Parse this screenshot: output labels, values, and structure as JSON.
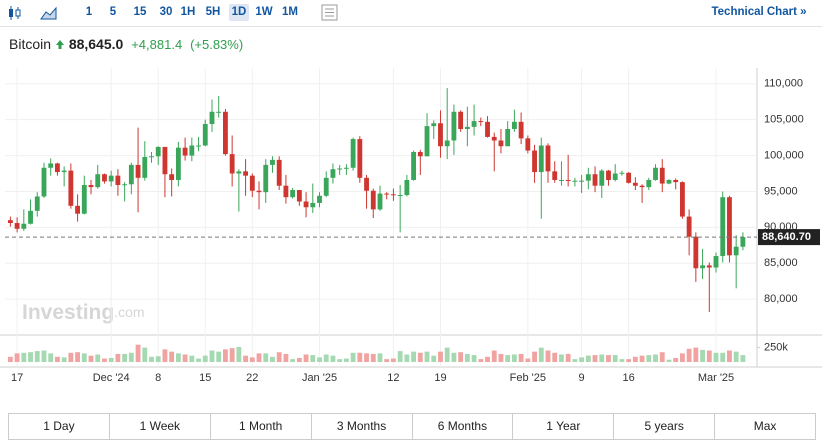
{
  "toolbar": {
    "intervals": [
      "1",
      "5",
      "15",
      "30",
      "1H",
      "5H",
      "1D",
      "1W",
      "1M"
    ],
    "selected": "1D",
    "link": "Technical Chart »"
  },
  "header": {
    "name": "Bitcoin",
    "price": "88,645.0",
    "change": "+4,881.4",
    "change_pct": "(+5.83%)"
  },
  "watermark": {
    "brand": "Investing",
    "suffix": ".com"
  },
  "ranges": [
    "1 Day",
    "1 Week",
    "1 Month",
    "3 Months",
    "6 Months",
    "1 Year",
    "5 years",
    "Max"
  ],
  "chart_data": {
    "type": "candlestick",
    "up_color": "#3aa65a",
    "down_color": "#cf3630",
    "grid": true,
    "xlim": [
      -0.8,
      111.1
    ],
    "xticks": [
      {
        "value": 1,
        "label": "17"
      },
      {
        "value": 15,
        "label": "Dec '24"
      },
      {
        "value": 22,
        "label": "8"
      },
      {
        "value": 29,
        "label": "15"
      },
      {
        "value": 36,
        "label": "22"
      },
      {
        "value": 46,
        "label": "Jan '25"
      },
      {
        "value": 57,
        "label": "12"
      },
      {
        "value": 64,
        "label": "19"
      },
      {
        "value": 77,
        "label": "Feb '25"
      },
      {
        "value": 85,
        "label": "9"
      },
      {
        "value": 92,
        "label": "16"
      },
      {
        "value": 105,
        "label": "Mar '25"
      }
    ],
    "ylim": [
      75000,
      112200
    ],
    "yticks": [
      {
        "value": 80000,
        "label": "80,000"
      },
      {
        "value": 85000,
        "label": "85,000"
      },
      {
        "value": 90000,
        "label": "90,000"
      },
      {
        "value": 95000,
        "label": "95,000"
      },
      {
        "value": 100000,
        "label": "100,000"
      },
      {
        "value": 105000,
        "label": "105,000"
      },
      {
        "value": 110000,
        "label": "110,000"
      }
    ],
    "last_price": {
      "value": 88640.7,
      "label": "88,640.70"
    },
    "ohlc": [
      [
        91000,
        91500,
        90100,
        90600
      ],
      [
        90600,
        91400,
        89300,
        89800
      ],
      [
        89800,
        92500,
        89500,
        90500
      ],
      [
        90500,
        93900,
        90400,
        92300
      ],
      [
        92300,
        94900,
        91500,
        94300
      ],
      [
        94300,
        99000,
        94100,
        98300
      ],
      [
        98300,
        99600,
        97200,
        98900
      ],
      [
        98900,
        99000,
        97200,
        97700
      ],
      [
        97700,
        98500,
        95700,
        97900
      ],
      [
        97900,
        98900,
        92600,
        93000
      ],
      [
        93000,
        94600,
        90800,
        91900
      ],
      [
        91900,
        97200,
        91800,
        95900
      ],
      [
        95900,
        96600,
        94600,
        95600
      ],
      [
        95600,
        98700,
        95400,
        97400
      ],
      [
        97400,
        97500,
        96100,
        96400
      ],
      [
        96400,
        97900,
        95700,
        97200
      ],
      [
        97200,
        98100,
        94400,
        95900
      ],
      [
        95900,
        96300,
        93600,
        96000
      ],
      [
        96000,
        99000,
        94600,
        98700
      ],
      [
        98700,
        103900,
        92100,
        96900
      ],
      [
        96900,
        102000,
        96500,
        99800
      ],
      [
        99800,
        100500,
        99000,
        99900
      ],
      [
        99900,
        101300,
        98700,
        101200
      ],
      [
        101200,
        101200,
        94200,
        97400
      ],
      [
        97400,
        98200,
        94300,
        96600
      ],
      [
        96600,
        101900,
        95700,
        101100
      ],
      [
        101100,
        102500,
        99300,
        100000
      ],
      [
        100000,
        102500,
        99200,
        101400
      ],
      [
        101400,
        102600,
        100600,
        101400
      ],
      [
        101400,
        105000,
        101300,
        104400
      ],
      [
        104400,
        107800,
        103300,
        106100
      ],
      [
        106100,
        108300,
        105300,
        106100
      ],
      [
        106100,
        106500,
        100000,
        100200
      ],
      [
        100200,
        102800,
        95700,
        97500
      ],
      [
        97500,
        98100,
        92200,
        97800
      ],
      [
        97800,
        99500,
        94400,
        97200
      ],
      [
        97200,
        97500,
        94200,
        95100
      ],
      [
        95100,
        96400,
        92500,
        94900
      ],
      [
        94900,
        99500,
        93400,
        98700
      ],
      [
        98700,
        99900,
        97600,
        99400
      ],
      [
        99400,
        99900,
        95200,
        95800
      ],
      [
        95800,
        97300,
        93300,
        94200
      ],
      [
        94200,
        95500,
        94000,
        95200
      ],
      [
        95200,
        95200,
        93000,
        93600
      ],
      [
        93600,
        94900,
        91400,
        92800
      ],
      [
        92800,
        96100,
        92000,
        93400
      ],
      [
        93400,
        94900,
        92800,
        94400
      ],
      [
        94400,
        97800,
        94200,
        96900
      ],
      [
        96900,
        98900,
        96100,
        98100
      ],
      [
        98100,
        98700,
        97300,
        98200
      ],
      [
        98200,
        98800,
        97300,
        98300
      ],
      [
        98300,
        102500,
        97900,
        102300
      ],
      [
        102300,
        102700,
        96200,
        96900
      ],
      [
        96900,
        97300,
        92600,
        95100
      ],
      [
        95100,
        95400,
        91300,
        92500
      ],
      [
        92500,
        95800,
        92300,
        94700
      ],
      [
        94700,
        94900,
        93900,
        94600
      ],
      [
        94600,
        95400,
        93700,
        94500
      ],
      [
        94500,
        95900,
        89300,
        94500
      ],
      [
        94500,
        97300,
        94300,
        96600
      ],
      [
        96600,
        100700,
        96500,
        100500
      ],
      [
        100500,
        100800,
        97300,
        99900
      ],
      [
        99900,
        105900,
        99900,
        104100
      ],
      [
        104100,
        104900,
        102300,
        104500
      ],
      [
        104500,
        106300,
        99700,
        101300
      ],
      [
        101300,
        109400,
        99500,
        102100
      ],
      [
        102100,
        107100,
        100100,
        106100
      ],
      [
        106100,
        106300,
        103300,
        103700
      ],
      [
        103700,
        106800,
        101300,
        104000
      ],
      [
        104000,
        107100,
        102800,
        104800
      ],
      [
        104800,
        105300,
        104100,
        104700
      ],
      [
        104700,
        105500,
        102500,
        102600
      ],
      [
        102600,
        103200,
        97800,
        102100
      ],
      [
        102100,
        103700,
        100300,
        101300
      ],
      [
        101300,
        104800,
        101300,
        103700
      ],
      [
        103700,
        106400,
        103300,
        104700
      ],
      [
        104700,
        106000,
        101600,
        102400
      ],
      [
        102400,
        102800,
        100300,
        100700
      ],
      [
        100700,
        101500,
        96200,
        97700
      ],
      [
        97700,
        102500,
        91200,
        101400
      ],
      [
        101400,
        101700,
        96200,
        97800
      ],
      [
        97800,
        99200,
        96200,
        96600
      ],
      [
        96600,
        99200,
        95800,
        96600
      ],
      [
        96600,
        100100,
        95700,
        96500
      ],
      [
        96500,
        96900,
        95700,
        96500
      ],
      [
        96500,
        97300,
        94800,
        96500
      ],
      [
        96500,
        98300,
        95300,
        97400
      ],
      [
        97400,
        98500,
        94900,
        95800
      ],
      [
        95800,
        98100,
        94100,
        97900
      ],
      [
        97900,
        98000,
        95800,
        96600
      ],
      [
        96600,
        98800,
        96400,
        97500
      ],
      [
        97500,
        97900,
        97200,
        97600
      ],
      [
        97600,
        97700,
        96100,
        96200
      ],
      [
        96200,
        97000,
        95200,
        95800
      ],
      [
        95800,
        96000,
        93400,
        95600
      ],
      [
        95600,
        96900,
        95200,
        96600
      ],
      [
        96600,
        98800,
        96500,
        98300
      ],
      [
        98300,
        99500,
        94900,
        96100
      ],
      [
        96100,
        96700,
        96000,
        96600
      ],
      [
        96600,
        96800,
        95300,
        96300
      ],
      [
        96300,
        96400,
        91200,
        91500
      ],
      [
        91500,
        92500,
        86100,
        88700
      ],
      [
        88700,
        89300,
        82400,
        84300
      ],
      [
        84300,
        87000,
        82800,
        84700
      ],
      [
        84700,
        85100,
        78200,
        84400
      ],
      [
        84400,
        86500,
        83700,
        86000
      ],
      [
        86000,
        95000,
        85100,
        94200
      ],
      [
        94200,
        94400,
        85100,
        86100
      ],
      [
        86100,
        88900,
        81500,
        87300
      ],
      [
        87300,
        89300,
        86800,
        88640.7
      ]
    ],
    "volume": {
      "up_color": "#a5d9b2",
      "down_color": "#f0a3a0",
      "ylim": [
        0,
        330000
      ],
      "yticks": [
        {
          "value": 250000,
          "label": "250k"
        }
      ],
      "values": [
        90000,
        150000,
        160000,
        170000,
        190000,
        200000,
        150000,
        90000,
        80000,
        160000,
        170000,
        150000,
        110000,
        130000,
        60000,
        70000,
        140000,
        140000,
        160000,
        300000,
        250000,
        90000,
        100000,
        220000,
        180000,
        150000,
        130000,
        110000,
        60000,
        110000,
        200000,
        180000,
        220000,
        240000,
        260000,
        110000,
        80000,
        150000,
        150000,
        90000,
        170000,
        140000,
        50000,
        70000,
        130000,
        120000,
        80000,
        130000,
        110000,
        50000,
        60000,
        160000,
        160000,
        150000,
        140000,
        150000,
        50000,
        60000,
        190000,
        130000,
        180000,
        160000,
        180000,
        110000,
        180000,
        250000,
        160000,
        170000,
        140000,
        120000,
        50000,
        90000,
        200000,
        140000,
        120000,
        130000,
        140000,
        60000,
        180000,
        250000,
        200000,
        160000,
        130000,
        140000,
        50000,
        80000,
        110000,
        120000,
        130000,
        120000,
        120000,
        50000,
        50000,
        90000,
        110000,
        120000,
        130000,
        170000,
        40000,
        70000,
        150000,
        230000,
        250000,
        210000,
        200000,
        160000,
        160000,
        200000,
        180000,
        120000
      ]
    }
  }
}
